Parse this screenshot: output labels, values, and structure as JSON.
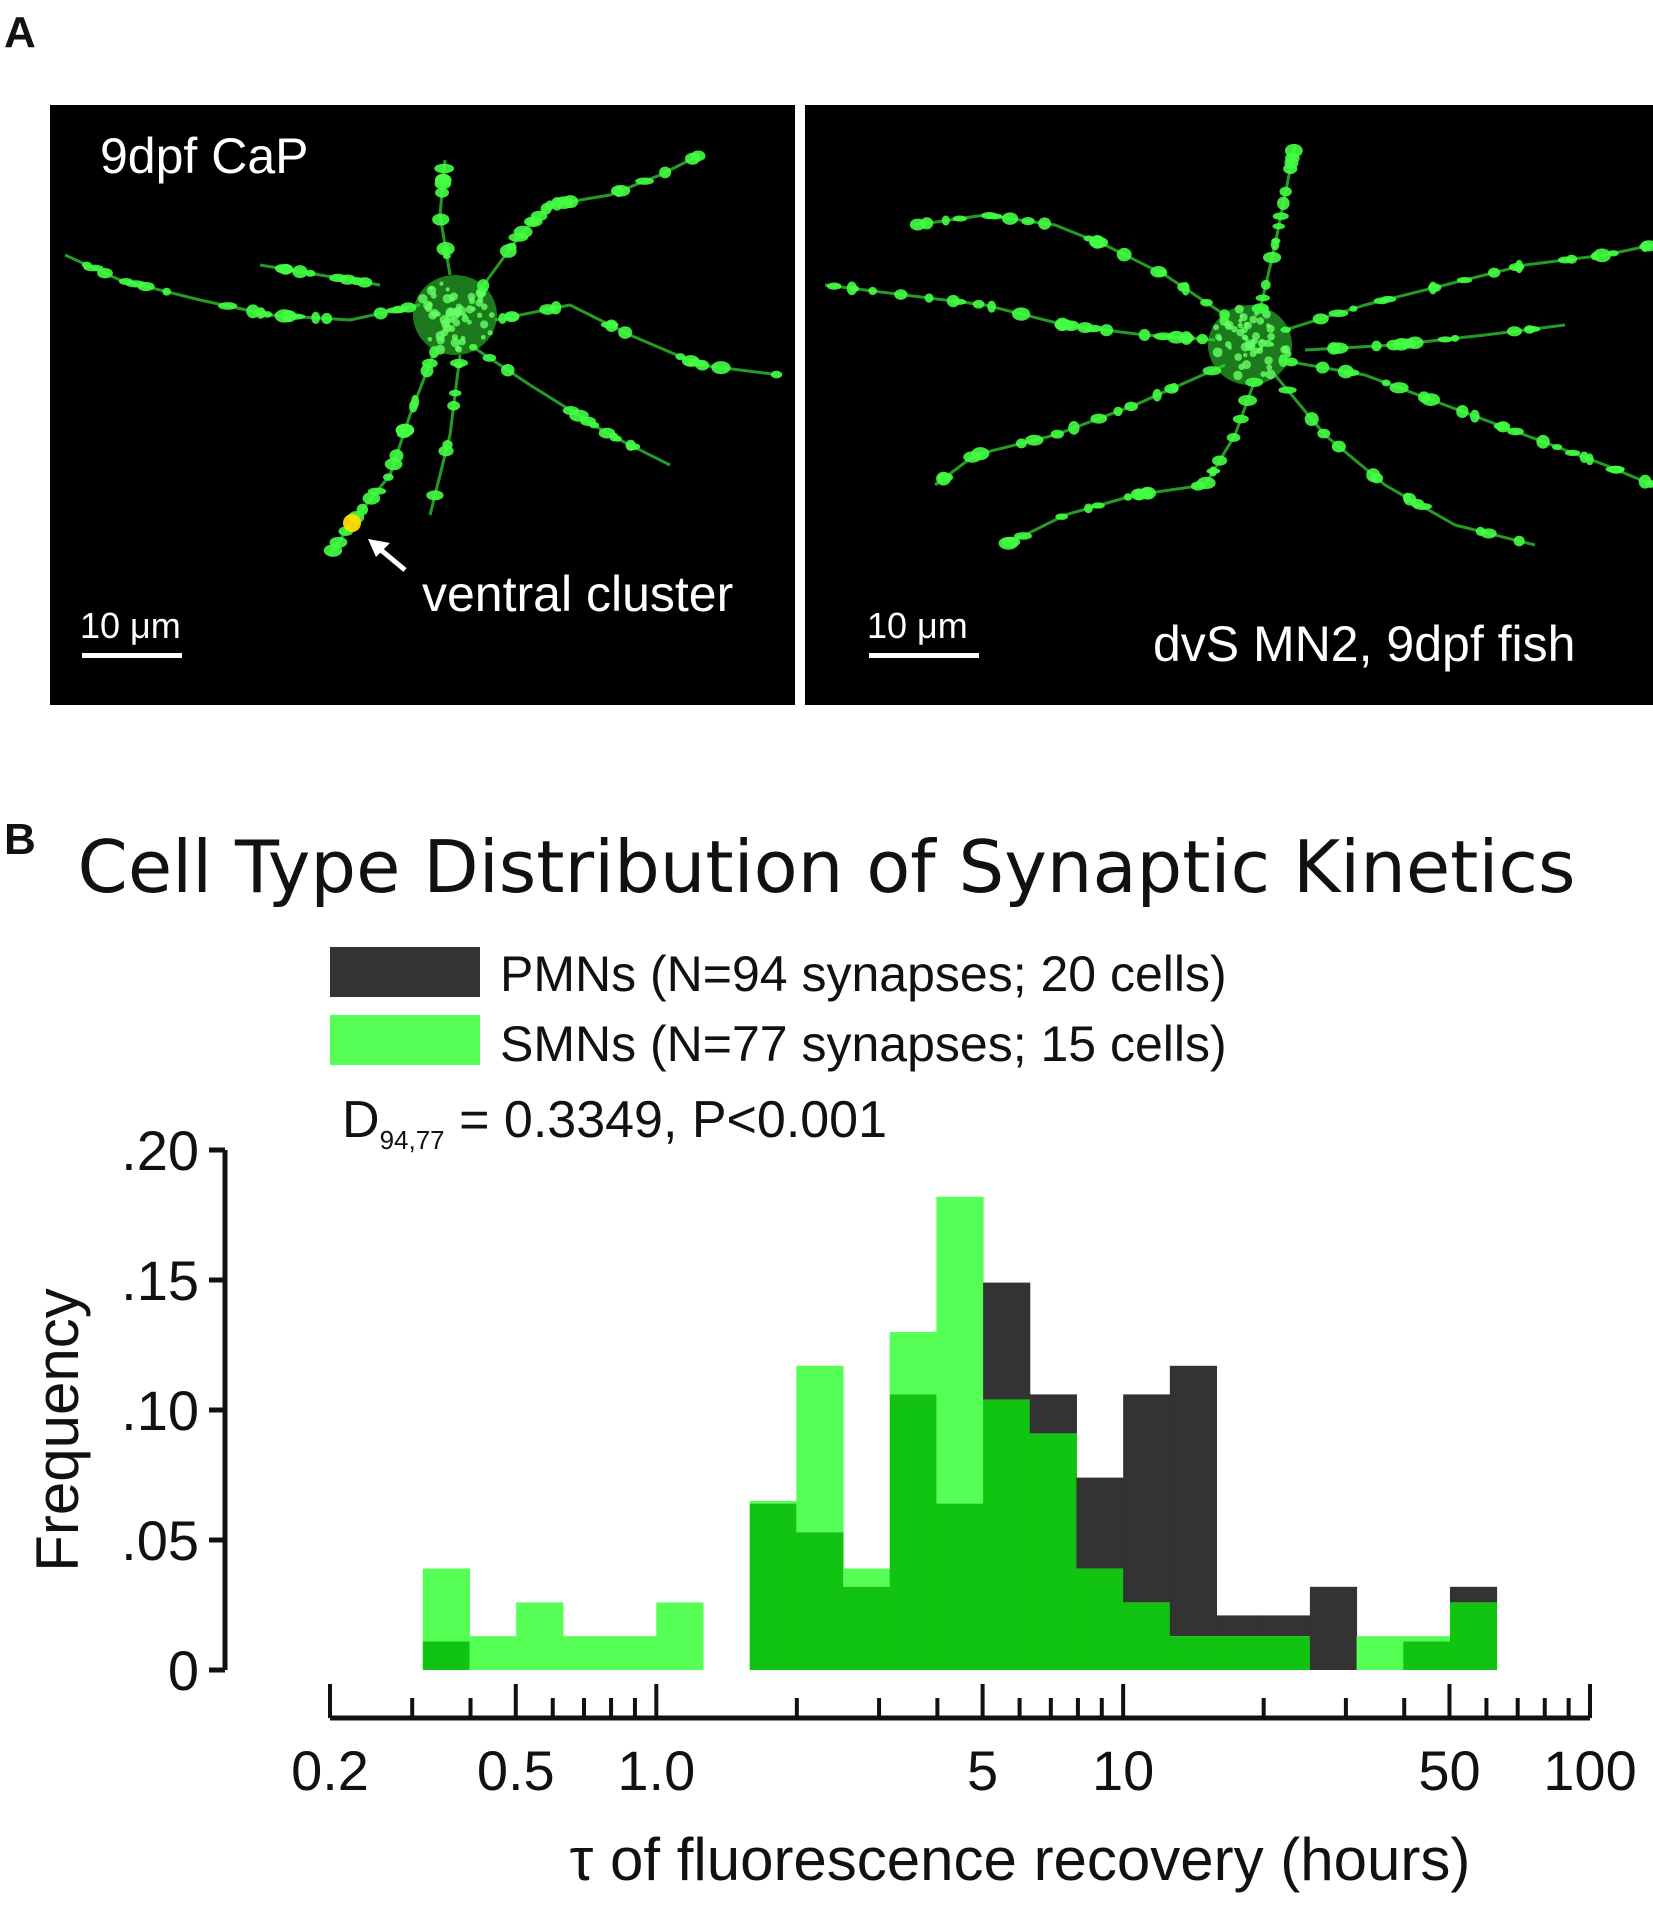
{
  "panels": {
    "a_letter": "A",
    "b_letter": "B"
  },
  "micrographs": [
    {
      "label": "9dpf CaP",
      "scale_bar": "10 μm",
      "annotation": "ventral cluster"
    },
    {
      "label": "dvS MN2, 9dpf fish",
      "scale_bar": "10 μm"
    }
  ],
  "colors": {
    "pmn": "#333333",
    "smn_light": "#55ff55",
    "overlap": "#11c411",
    "neuron": "#33dd33"
  },
  "chart_data": {
    "type": "bar",
    "title": "Cell Type Distribution of Synaptic Kinetics",
    "xlabel": "τ of fluorescence recovery (hours)",
    "ylabel": "Frequency",
    "x_scale": "log",
    "xlim": [
      0.2,
      100
    ],
    "ylim": [
      0,
      0.2
    ],
    "y_ticks": [
      {
        "value": 0.2,
        "label": ".20"
      },
      {
        "value": 0.15,
        "label": ".15"
      },
      {
        "value": 0.1,
        "label": ".10"
      },
      {
        "value": 0.05,
        "label": ".05"
      },
      {
        "value": 0,
        "label": "0"
      }
    ],
    "x_tick_labels": [
      {
        "value": 0.2,
        "label": "0.2"
      },
      {
        "value": 0.5,
        "label": "0.5"
      },
      {
        "value": 1.0,
        "label": "1.0"
      },
      {
        "value": 5,
        "label": "5"
      },
      {
        "value": 10,
        "label": "10"
      },
      {
        "value": 50,
        "label": "50"
      },
      {
        "value": 100,
        "label": "100"
      }
    ],
    "x_minor_ticks": [
      0.3,
      0.4,
      0.6,
      0.7,
      0.8,
      0.9,
      2,
      3,
      4,
      6,
      7,
      8,
      9,
      20,
      30,
      40,
      60,
      70,
      80,
      90
    ],
    "bin_edges": [
      0.316,
      0.398,
      0.501,
      0.631,
      0.794,
      1.0,
      1.259,
      1.585,
      1.995,
      2.512,
      3.162,
      3.981,
      5.012,
      6.31,
      7.943,
      10.0,
      12.589,
      15.849,
      19.953,
      25.119,
      31.623,
      39.811,
      50.119,
      63.096
    ],
    "legend_position": "top-left",
    "series": [
      {
        "name": "PMNs (N=94 synapses; 20 cells)",
        "values": [
          0.011,
          0.0,
          0.0,
          0.0,
          0.0,
          0.0,
          0.0,
          0.064,
          0.053,
          0.032,
          0.106,
          0.064,
          0.149,
          0.106,
          0.074,
          0.106,
          0.117,
          0.021,
          0.021,
          0.032,
          0.0,
          0.011,
          0.032
        ]
      },
      {
        "name": "SMNs (N=77 synapses; 15 cells)",
        "values": [
          0.039,
          0.013,
          0.026,
          0.013,
          0.013,
          0.026,
          0.0,
          0.065,
          0.117,
          0.039,
          0.13,
          0.182,
          0.104,
          0.091,
          0.039,
          0.026,
          0.013,
          0.013,
          0.013,
          0.0,
          0.013,
          0.013,
          0.026
        ]
      }
    ],
    "annotation": {
      "label": "D",
      "subscript": "94,77",
      "text": " = 0.3349, P<0.001"
    }
  }
}
